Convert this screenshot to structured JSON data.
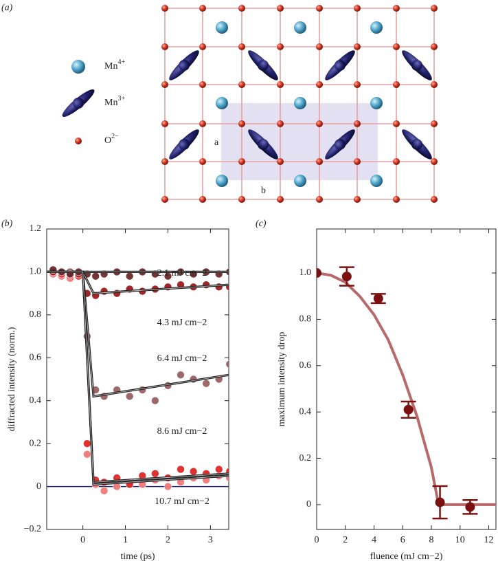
{
  "panel_labels": [
    "(a)",
    "(b)",
    "(c)"
  ],
  "diagram": {
    "legend": [
      {
        "label": "Mn",
        "charge": "4+"
      },
      {
        "label": "Mn",
        "charge": "3+"
      },
      {
        "label": "O",
        "charge": "2−"
      }
    ],
    "axis_labels": [
      "a",
      "b"
    ]
  },
  "chart_data": [
    {
      "type": "scatter",
      "xlabel": "time (ps)",
      "ylabel": "diffracted intensity (norm.)",
      "xlim": [
        -0.85,
        3.43
      ],
      "ylim": [
        -0.2,
        1.2
      ],
      "xticks": [
        0,
        1,
        2,
        3
      ],
      "yticks": [
        {
          "value": -0.2,
          "label": "−0.2"
        },
        0,
        0.2,
        0.4,
        0.6,
        0.8,
        {
          "value": 1.0,
          "label": "1.0"
        },
        1.2
      ],
      "reference_line": 0,
      "reference_color": "#1a237e",
      "x": [
        -0.7,
        -0.5,
        -0.3,
        -0.1,
        0.1,
        0.3,
        0.5,
        0.8,
        1.1,
        1.4,
        1.7,
        2.0,
        2.3,
        2.6,
        2.9,
        3.2,
        3.45
      ],
      "series": [
        {
          "name": "2.1 mJ cm−2",
          "color": "#6b2a2a",
          "values": [
            1.01,
            1.0,
            0.99,
            1.0,
            0.99,
            0.98,
            0.99,
            1.0,
            0.98,
            1.0,
            0.99,
            0.98,
            1.0,
            0.99,
            1.0,
            0.99,
            1.0
          ]
        },
        {
          "name": "4.3 mJ cm−2",
          "color": "#9b1c1c",
          "values": [
            1.0,
            1.0,
            0.99,
            0.99,
            0.9,
            0.89,
            0.91,
            0.9,
            0.92,
            0.91,
            0.92,
            0.93,
            0.94,
            0.93,
            0.94,
            0.93,
            0.93
          ]
        },
        {
          "name": "6.4 mJ cm−2",
          "color": "#9a6060",
          "values": [
            1.0,
            1.0,
            1.0,
            0.99,
            0.7,
            0.45,
            0.42,
            0.45,
            0.42,
            0.45,
            0.4,
            0.47,
            0.52,
            0.5,
            0.48,
            0.5,
            0.57
          ]
        },
        {
          "name": "8.6 mJ cm−2",
          "color": "#e02828",
          "values": [
            1.0,
            0.99,
            1.0,
            0.98,
            0.2,
            0.03,
            0.02,
            0.04,
            0.01,
            0.05,
            0.06,
            0.04,
            0.08,
            0.07,
            0.06,
            0.08,
            0.07
          ]
        },
        {
          "name": "10.7 mJ cm−2",
          "color": "#f07a7a",
          "values": [
            0.99,
            0.98,
            0.97,
            0.99,
            0.15,
            0.01,
            -0.02,
            0.0,
            0.02,
            0.01,
            0.03,
            0.0,
            0.02,
            0.04,
            0.03,
            0.05,
            0.04
          ]
        }
      ],
      "fit_x": [
        -0.85,
        0.0,
        0.25,
        3.43
      ],
      "fits": [
        [
          1.0,
          1.0,
          1.0,
          1.0
        ],
        [
          1.0,
          1.0,
          0.9,
          0.94
        ],
        [
          1.0,
          1.0,
          0.42,
          0.52
        ],
        [
          1.0,
          1.0,
          0.02,
          0.06
        ],
        [
          1.0,
          1.0,
          0.01,
          0.05
        ]
      ],
      "fit_color": "#222222"
    },
    {
      "type": "errorbar",
      "xlabel": "fluence (mJ cm−2)",
      "ylabel": "maximum intensity drop",
      "xlim": [
        0,
        12.5
      ],
      "ylim": [
        -0.107,
        1.19
      ],
      "xticks": [
        0,
        2,
        4,
        6,
        8,
        10,
        12
      ],
      "yticks": [
        0,
        0.2,
        0.4,
        0.6,
        0.8,
        {
          "value": 1.0,
          "label": "1.0"
        }
      ],
      "color": "#7a1010",
      "x": [
        0,
        2.1,
        4.3,
        6.4,
        8.6,
        10.7
      ],
      "values": [
        1.0,
        0.985,
        0.89,
        0.41,
        0.01,
        -0.01
      ],
      "errors": [
        0,
        0.04,
        0.02,
        0.035,
        0.07,
        0.03
      ],
      "fit_x": [
        0,
        1,
        2,
        3,
        4,
        5,
        6,
        7,
        8,
        8.5,
        9,
        10,
        11,
        12.5
      ],
      "fit_values": [
        1.0,
        0.99,
        0.96,
        0.9,
        0.82,
        0.71,
        0.56,
        0.38,
        0.16,
        0.0,
        0.0,
        0.0,
        0.0,
        0.0
      ],
      "fit_color": "#b86a6a"
    }
  ]
}
